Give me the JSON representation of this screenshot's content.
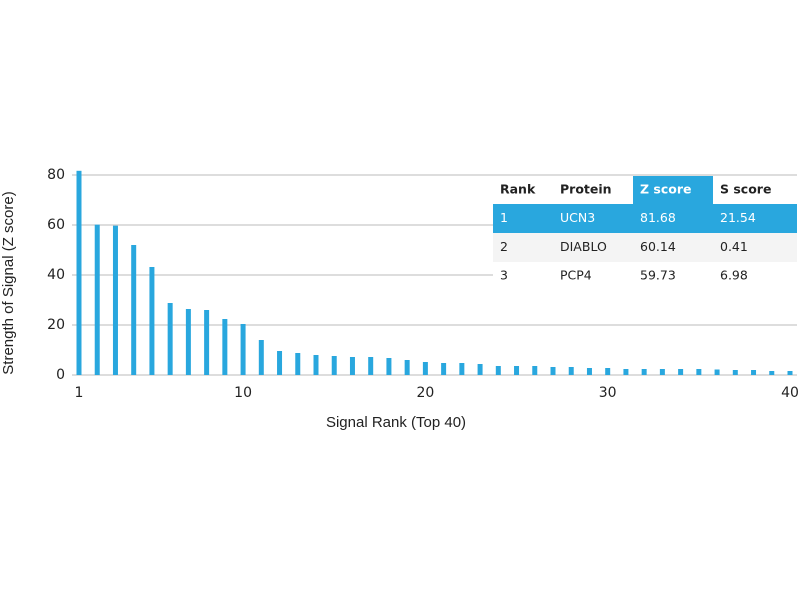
{
  "chart_data": {
    "type": "bar",
    "x_label": "Signal Rank (Top 40)",
    "y_label": "Strength of Signal (Z score)",
    "x": [
      1,
      2,
      3,
      4,
      5,
      6,
      7,
      8,
      9,
      10,
      11,
      12,
      13,
      14,
      15,
      16,
      17,
      18,
      19,
      20,
      21,
      22,
      23,
      24,
      25,
      26,
      27,
      28,
      29,
      30,
      31,
      32,
      33,
      34,
      35,
      36,
      37,
      38,
      39,
      40
    ],
    "values": [
      81.68,
      60.14,
      59.73,
      52,
      43.2,
      28.8,
      26.4,
      26,
      22.4,
      20.4,
      14,
      9.6,
      8.8,
      8,
      7.6,
      7.2,
      7.2,
      6.8,
      6,
      5.2,
      4.8,
      4.8,
      4.4,
      3.6,
      3.6,
      3.6,
      3.2,
      3.2,
      2.8,
      2.8,
      2.4,
      2.4,
      2.4,
      2.4,
      2.4,
      2.2,
      2,
      2,
      1.6,
      1.6
    ],
    "color": "#29a7de",
    "xlim": [
      1,
      40
    ],
    "xticks": [
      1,
      10,
      20,
      30,
      40
    ],
    "ylim": [
      0,
      80
    ],
    "yticks": [
      0,
      20,
      40,
      60,
      80
    ],
    "grid": true
  },
  "table": {
    "columns": [
      "Rank",
      "Protein",
      "Z score",
      "S score"
    ],
    "rows": [
      [
        "1",
        "UCN3",
        "81.68",
        "21.54"
      ],
      [
        "2",
        "DIABLO",
        "60.14",
        "0.41"
      ],
      [
        "3",
        "PCP4",
        "59.73",
        "6.98"
      ]
    ],
    "highlight_color": "#29a7de"
  }
}
